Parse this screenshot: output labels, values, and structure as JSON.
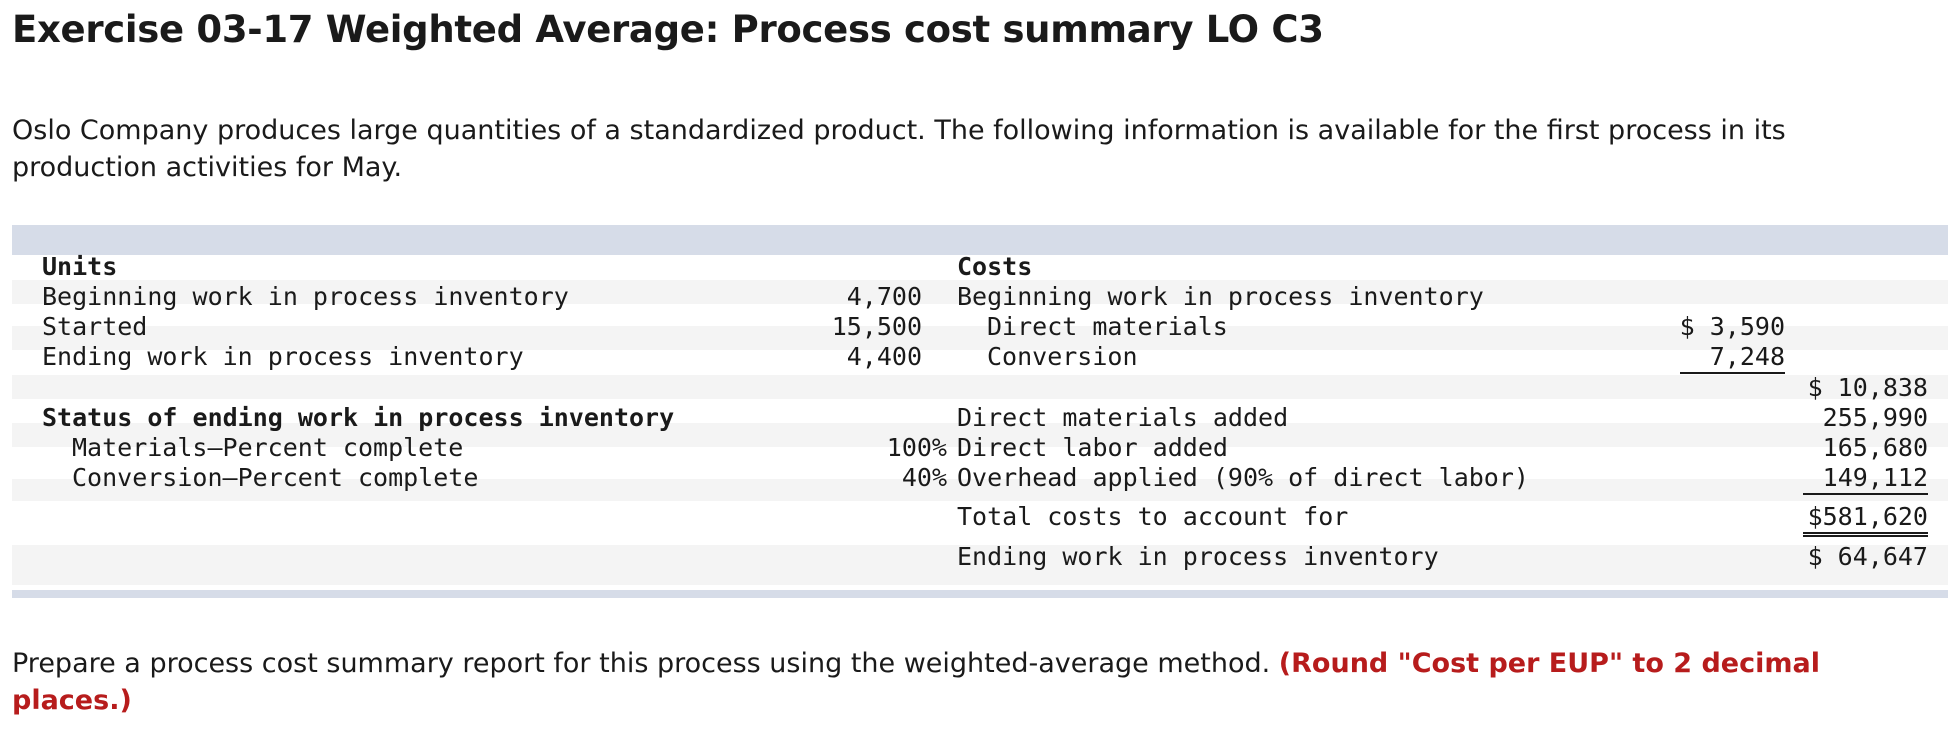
{
  "title": "Exercise 03-17 Weighted Average: Process cost summary LO C3",
  "intro": "Oslo Company produces large quantities of a standardized product. The following information is available for the first process in its production activities for May.",
  "units": {
    "heading": "Units",
    "rows": [
      {
        "label": "Beginning work in process inventory",
        "value": "4,700"
      },
      {
        "label": "Started",
        "value": "15,500"
      },
      {
        "label": "Ending work in process inventory",
        "value": "4,400"
      }
    ],
    "status_heading": "Status of ending work in process inventory",
    "status_rows": [
      {
        "label": "Materials—Percent complete",
        "value": "100%"
      },
      {
        "label": "Conversion—Percent complete",
        "value": "40%"
      }
    ]
  },
  "costs": {
    "heading": "Costs",
    "beginning_label": "Beginning work in process inventory",
    "beginning_items": [
      {
        "label": "Direct materials",
        "value": "$ 3,590"
      },
      {
        "label": "Conversion",
        "value": "7,248"
      }
    ],
    "beginning_total": "$ 10,838",
    "added": [
      {
        "label": "Direct materials added",
        "value": "255,990"
      },
      {
        "label": "Direct labor added",
        "value": "165,680"
      },
      {
        "label": "Overhead applied (90% of direct labor)",
        "value": "149,112"
      }
    ],
    "total_label": "Total costs to account for",
    "total_value": "$581,620",
    "ending_label": "Ending work in process inventory",
    "ending_value": "$ 64,647"
  },
  "instruction": {
    "text": "Prepare a process cost summary report for this process using the weighted-average method.",
    "note": "(Round \"Cost per EUP\" to 2 decimal places.)"
  }
}
